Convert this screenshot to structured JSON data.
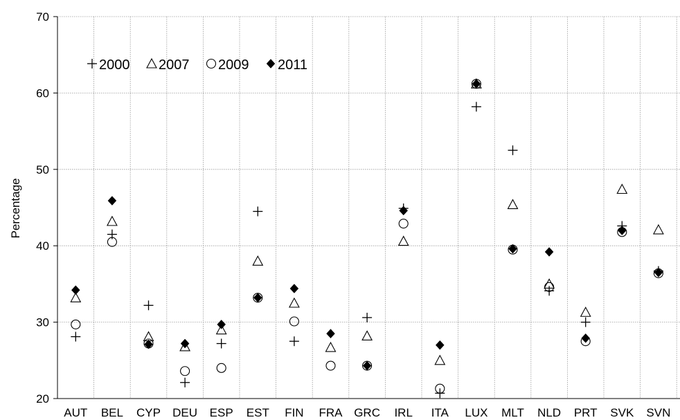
{
  "chart_data": {
    "type": "scatter",
    "ylabel": "Percentage",
    "xlabel": "",
    "ylim": [
      20,
      70
    ],
    "yticks": [
      20,
      30,
      40,
      50,
      60,
      70
    ],
    "grid": true,
    "legend_position": "top-left",
    "categories": [
      "AUT",
      "BEL",
      "CYP",
      "DEU",
      "ESP",
      "EST",
      "FIN",
      "FRA",
      "GRC",
      "IRL",
      "ITA",
      "LUX",
      "MLT",
      "NLD",
      "PRT",
      "SVK",
      "SVN"
    ],
    "series": [
      {
        "name": "2000",
        "marker": "plus",
        "values": [
          28.1,
          41.5,
          32.2,
          22.1,
          27.2,
          44.5,
          27.5,
          null,
          30.6,
          44.9,
          20.7,
          58.2,
          52.5,
          34.1,
          30.0,
          42.6,
          36.7
        ]
      },
      {
        "name": "2007",
        "marker": "triangle-open",
        "values": [
          33.2,
          43.2,
          28.1,
          26.8,
          29.0,
          38.0,
          32.5,
          26.7,
          28.2,
          40.6,
          25.0,
          61.2,
          45.4,
          35.0,
          31.3,
          47.4,
          42.1
        ]
      },
      {
        "name": "2009",
        "marker": "circle-open",
        "values": [
          29.7,
          40.5,
          27.2,
          23.6,
          24.0,
          33.2,
          30.1,
          24.3,
          24.3,
          42.9,
          21.3,
          61.2,
          39.5,
          34.6,
          27.5,
          41.8,
          36.4
        ]
      },
      {
        "name": "2011",
        "marker": "diamond-filled",
        "values": [
          34.2,
          45.9,
          27.1,
          27.2,
          29.7,
          33.2,
          34.4,
          28.5,
          24.3,
          44.6,
          27.0,
          61.2,
          39.6,
          39.2,
          27.9,
          42.0,
          36.5
        ]
      }
    ]
  }
}
